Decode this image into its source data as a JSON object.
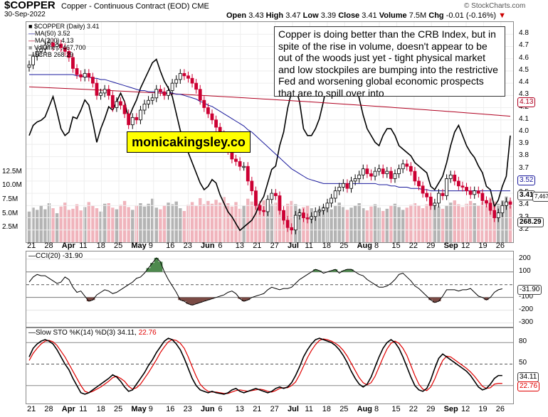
{
  "header": {
    "symbol": "$COPPER",
    "description": "Copper - Continuous Contract (EOD)",
    "exchange": "CME",
    "date": "30-Sep-2022",
    "brand": "© StockCharts.com",
    "open_label": "Open",
    "open": "3.43",
    "high_label": "High",
    "high": "3.47",
    "low_label": "Low",
    "low": "3.39",
    "close_label": "Close",
    "close": "3.41",
    "volume_label": "Volume",
    "volume": "7.5M",
    "chg_label": "Chg",
    "chg": "-0.01 (-0.16%)"
  },
  "legend": {
    "main": "$COPPER (Daily) 3.41",
    "ma50": "MA(50) 3.52",
    "ma200": "MA(200) 4.13",
    "volume": "Volume 7,467,700",
    "crb": "$CRB 268.29"
  },
  "annotation": "Copper is doing better than the CRB Index, but in spite of the rise in volume, doesn't appear to be out of the woods just yet - tight physical market and low stockpiles are bumping into the restrictive Fed and worsening global economic prospects that are to spill over into",
  "watermark": "monicakingsley.co",
  "colors": {
    "up": "#000000",
    "down": "#cc0033",
    "ma50": "#1a1a9c",
    "ma200": "#b00020",
    "crb": "#000000",
    "vol_up": "#b4b4b4",
    "vol_down": "#f0b4bc",
    "cci_pos": "#4e8a4e",
    "cci_neg": "#7a4a44",
    "stok": "#000000",
    "stod": "#e00000"
  },
  "x_labels": [
    {
      "t": "21",
      "major": false
    },
    {
      "t": "28",
      "major": false
    },
    {
      "t": "Apr",
      "major": true
    },
    {
      "t": "11",
      "major": false
    },
    {
      "t": "18",
      "major": false
    },
    {
      "t": "25",
      "major": false
    },
    {
      "t": "May",
      "major": true
    },
    {
      "t": "9",
      "major": false
    },
    {
      "t": "16",
      "major": false
    },
    {
      "t": "23",
      "major": false
    },
    {
      "t": "Jun",
      "major": true
    },
    {
      "t": "6",
      "major": false
    },
    {
      "t": "13",
      "major": false
    },
    {
      "t": "21",
      "major": false
    },
    {
      "t": "27",
      "major": false
    },
    {
      "t": "Jul",
      "major": true
    },
    {
      "t": "11",
      "major": false
    },
    {
      "t": "18",
      "major": false
    },
    {
      "t": "25",
      "major": false
    },
    {
      "t": "Aug",
      "major": true
    },
    {
      "t": "8",
      "major": false
    },
    {
      "t": "15",
      "major": false
    },
    {
      "t": "22",
      "major": false
    },
    {
      "t": "29",
      "major": false
    },
    {
      "t": "Sep",
      "major": true
    },
    {
      "t": "12",
      "major": false
    },
    {
      "t": "19",
      "major": false
    },
    {
      "t": "26",
      "major": false
    }
  ],
  "price_axis_labels": [
    "4.8",
    "4.7",
    "4.6",
    "4.5",
    "4.4",
    "4.3",
    "4.2",
    "4.1",
    "4.0",
    "3.9",
    "3.8",
    "3.7",
    "3.6",
    "3.5",
    "3.4",
    "3.3",
    "3.2"
  ],
  "volume_axis_labels": [
    "12.5M",
    "10.0M",
    "7.5M",
    "5.0M",
    "2.5M"
  ],
  "badges": {
    "ma200": "4.13",
    "ma50": "3.52",
    "close": "3.41",
    "vol": "7,467,700",
    "crb": "268.29",
    "cci": "-31.90",
    "stok": "34.11",
    "stod": "22.76"
  },
  "cci": {
    "label": "CCI(20) -31.90",
    "axis": [
      "200",
      "100",
      "-100",
      "-200",
      "-300"
    ]
  },
  "sto": {
    "label_prefix": "Slow STO %K(14) %D(3) 34.11,",
    "label_d": "22.76",
    "axis": [
      "80",
      "50"
    ]
  },
  "chart_data": {
    "type": "candlestick",
    "title": "$COPPER (Daily) 3.41",
    "ylim": [
      3.1,
      4.9
    ],
    "closes": [
      4.55,
      4.62,
      4.66,
      4.68,
      4.71,
      4.73,
      4.7,
      4.72,
      4.69,
      4.66,
      4.61,
      4.52,
      4.47,
      4.45,
      4.48,
      4.45,
      4.4,
      4.3,
      4.32,
      4.35,
      4.3,
      4.2,
      4.25,
      4.22,
      4.15,
      4.06,
      4.12,
      4.1,
      4.18,
      4.23,
      4.26,
      4.28,
      4.35,
      4.33,
      4.3,
      4.34,
      4.4,
      4.43,
      4.48,
      4.46,
      4.44,
      4.4,
      4.35,
      4.26,
      4.2,
      4.15,
      4.1,
      4.04,
      3.98,
      3.92,
      3.85,
      3.78,
      3.76,
      3.72,
      3.72,
      3.6,
      3.52,
      3.4,
      3.36,
      3.35,
      3.45,
      3.5,
      3.48,
      3.36,
      3.28,
      3.22,
      3.2,
      3.32,
      3.34,
      3.3,
      3.29,
      3.31,
      3.35,
      3.36,
      3.38,
      3.42,
      3.46,
      3.52,
      3.55,
      3.58,
      3.54,
      3.6,
      3.62,
      3.65,
      3.7,
      3.66,
      3.64,
      3.68,
      3.7,
      3.66,
      3.68,
      3.62,
      3.66,
      3.7,
      3.74,
      3.72,
      3.68,
      3.6,
      3.56,
      3.5,
      3.47,
      3.4,
      3.42,
      3.5,
      3.48,
      3.62,
      3.65,
      3.6,
      3.56,
      3.55,
      3.52,
      3.49,
      3.52,
      3.5,
      3.44,
      3.42,
      3.36,
      3.3,
      3.34,
      3.4,
      3.43,
      3.41
    ],
    "crb_closes": [
      268,
      274,
      276,
      277,
      279,
      285,
      291,
      282,
      272,
      268,
      270,
      279,
      278,
      283,
      289,
      286,
      276,
      264,
      272,
      278,
      285,
      283,
      288,
      293,
      288,
      278,
      284,
      289,
      296,
      301,
      306,
      311,
      313,
      306,
      300,
      296,
      291,
      281,
      271,
      264,
      258,
      252,
      246,
      240,
      236,
      238,
      242,
      240,
      233,
      228,
      223,
      220,
      216,
      212,
      214,
      216,
      218,
      222,
      228,
      232,
      240,
      248,
      250,
      262,
      270,
      284,
      294,
      296,
      288,
      272,
      268,
      268,
      272,
      278,
      288,
      300,
      306,
      314,
      322,
      326,
      318,
      312,
      300,
      290,
      280,
      272,
      268,
      264,
      262,
      268,
      272,
      272,
      268,
      262,
      260,
      258,
      256,
      252,
      250,
      248,
      246,
      238,
      236,
      240,
      244,
      252,
      262,
      270,
      274,
      268,
      262,
      258,
      255,
      250,
      246,
      238,
      236,
      226,
      230,
      238,
      244,
      268
    ],
    "ma50": [
      4.47,
      4.47,
      4.47,
      4.47,
      4.47,
      4.47,
      4.47,
      4.47,
      4.47,
      4.47,
      4.47,
      4.47,
      4.46,
      4.46,
      4.45,
      4.45,
      4.44,
      4.44,
      4.43,
      4.43,
      4.42,
      4.41,
      4.4,
      4.39,
      4.38,
      4.37,
      4.36,
      4.35,
      4.34,
      4.34,
      4.33,
      4.33,
      4.33,
      4.33,
      4.32,
      4.32,
      4.32,
      4.31,
      4.31,
      4.3,
      4.29,
      4.28,
      4.27,
      4.25,
      4.24,
      4.22,
      4.21,
      4.19,
      4.17,
      4.15,
      4.13,
      4.11,
      4.09,
      4.07,
      4.05,
      4.02,
      4.0,
      3.97,
      3.94,
      3.91,
      3.88,
      3.85,
      3.82,
      3.79,
      3.76,
      3.73,
      3.7,
      3.68,
      3.66,
      3.64,
      3.62,
      3.61,
      3.6,
      3.59,
      3.58,
      3.58,
      3.58,
      3.58,
      3.58,
      3.58,
      3.58,
      3.58,
      3.58,
      3.58,
      3.58,
      3.58,
      3.58,
      3.58,
      3.57,
      3.57,
      3.57,
      3.56,
      3.56,
      3.55,
      3.55,
      3.55,
      3.54,
      3.54,
      3.54,
      3.53,
      3.53,
      3.52,
      3.52,
      3.52,
      3.52,
      3.52,
      3.52,
      3.52,
      3.52,
      3.52,
      3.52,
      3.52,
      3.52,
      3.52,
      3.52,
      3.52,
      3.52,
      3.52,
      3.52,
      3.52,
      3.52,
      3.52
    ],
    "ma200_range": [
      4.37,
      4.13
    ],
    "volume_millions": [
      5.5,
      6.2,
      5.8,
      6.6,
      5.9,
      7.0,
      6.1,
      5.2,
      6.4,
      7.1,
      5.8,
      6.0,
      6.8,
      5.7,
      6.3,
      7.2,
      6.5,
      6.1,
      5.5,
      6.9,
      7.0,
      6.2,
      5.9,
      6.7,
      7.4,
      6.3,
      5.8,
      6.6,
      7.0,
      6.4,
      6.9,
      7.8,
      6.2,
      5.9,
      6.6,
      7.1,
      6.8,
      7.3,
      6.1,
      5.6,
      6.7,
      7.2,
      6.5,
      7.9,
      6.8,
      7.4,
      6.9,
      7.6,
      7.1,
      8.1,
      7.0,
      6.4,
      7.2,
      6.0,
      6.6,
      7.8,
      7.3,
      8.2,
      6.9,
      7.5,
      6.5,
      6.8,
      7.1,
      6.2,
      5.7,
      6.9,
      7.4,
      6.8,
      5.9,
      6.3,
      6.6,
      6.1,
      5.5,
      6.0,
      6.4,
      6.8,
      5.9,
      6.5,
      7.1,
      6.3,
      5.8,
      6.2,
      6.6,
      7.0,
      6.1,
      5.7,
      6.4,
      6.8,
      6.2,
      5.6,
      6.0,
      6.5,
      6.9,
      6.3,
      5.8,
      6.2,
      6.7,
      7.0,
      6.6,
      6.1,
      6.8,
      7.2,
      7.0,
      6.4,
      6.0,
      6.6,
      7.1,
      7.5,
      6.8,
      6.3,
      6.9,
      7.4,
      7.0,
      6.6,
      7.2,
      7.6,
      8.0,
      7.3,
      6.9,
      7.5,
      8.2,
      7.5
    ],
    "cci": [
      20,
      60,
      80,
      70,
      70,
      50,
      30,
      10,
      20,
      60,
      40,
      -20,
      -60,
      -50,
      -90,
      -130,
      -120,
      -80,
      -60,
      -40,
      -50,
      -70,
      -60,
      -40,
      -20,
      0,
      20,
      50,
      60,
      90,
      130,
      170,
      210,
      180,
      100,
      40,
      -10,
      -60,
      -120,
      -130,
      -150,
      -160,
      -150,
      -140,
      -130,
      -120,
      -110,
      -100,
      -90,
      -80,
      -60,
      -50,
      -70,
      -110,
      -130,
      -120,
      -100,
      -90,
      -80,
      -70,
      -40,
      -20,
      -30,
      -40,
      -30,
      -30,
      -20,
      10,
      40,
      60,
      80,
      100,
      120,
      110,
      90,
      100,
      110,
      120,
      90,
      110,
      120,
      120,
      100,
      80,
      70,
      40,
      20,
      0,
      -20,
      -20,
      -10,
      10,
      40,
      80,
      90,
      60,
      30,
      -10,
      -30,
      -60,
      -90,
      -120,
      -140,
      -130,
      -90,
      -40,
      -40,
      -40,
      -50,
      -40,
      -40,
      -30,
      -60,
      -90,
      -100,
      -120,
      -100,
      -60,
      -40,
      -32
    ],
    "slow_k": [
      60,
      72,
      78,
      82,
      84,
      82,
      78,
      70,
      60,
      50,
      42,
      30,
      20,
      10,
      8,
      10,
      14,
      18,
      22,
      26,
      30,
      35,
      32,
      26,
      18,
      12,
      14,
      22,
      30,
      38,
      48,
      56,
      66,
      74,
      82,
      86,
      84,
      78,
      70,
      58,
      44,
      30,
      20,
      14,
      12,
      10,
      12,
      10,
      9,
      8,
      10,
      14,
      16,
      12,
      10,
      12,
      14,
      16,
      14,
      12,
      10,
      12,
      16,
      18,
      16,
      18,
      24,
      34,
      46,
      60,
      70,
      78,
      84,
      86,
      84,
      82,
      80,
      76,
      70,
      62,
      52,
      40,
      30,
      22,
      18,
      22,
      32,
      46,
      60,
      72,
      80,
      84,
      80,
      72,
      60,
      46,
      32,
      20,
      14,
      12,
      16,
      28,
      44,
      58,
      64,
      60,
      56,
      52,
      48,
      44,
      40,
      34,
      26,
      18,
      14,
      16,
      22,
      30,
      34,
      34
    ],
    "slow_d": [
      55,
      65,
      72,
      78,
      82,
      83,
      81,
      76,
      68,
      60,
      50,
      40,
      30,
      20,
      12,
      10,
      12,
      15,
      18,
      22,
      26,
      31,
      33,
      30,
      26,
      19,
      15,
      17,
      22,
      30,
      38,
      47,
      56,
      66,
      74,
      81,
      84,
      83,
      79,
      72,
      60,
      46,
      33,
      22,
      16,
      12,
      11,
      11,
      10,
      9,
      9,
      11,
      13,
      14,
      13,
      12,
      13,
      14,
      15,
      14,
      12,
      11,
      13,
      16,
      17,
      17,
      20,
      25,
      35,
      47,
      59,
      69,
      77,
      83,
      85,
      84,
      82,
      79,
      75,
      69,
      61,
      51,
      41,
      31,
      24,
      21,
      24,
      33,
      46,
      59,
      71,
      79,
      82,
      79,
      72,
      62,
      48,
      34,
      22,
      15,
      13,
      18,
      29,
      43,
      55,
      61,
      60,
      56,
      52,
      48,
      44,
      39,
      33,
      26,
      19,
      16,
      17,
      22,
      23,
      23
    ]
  }
}
